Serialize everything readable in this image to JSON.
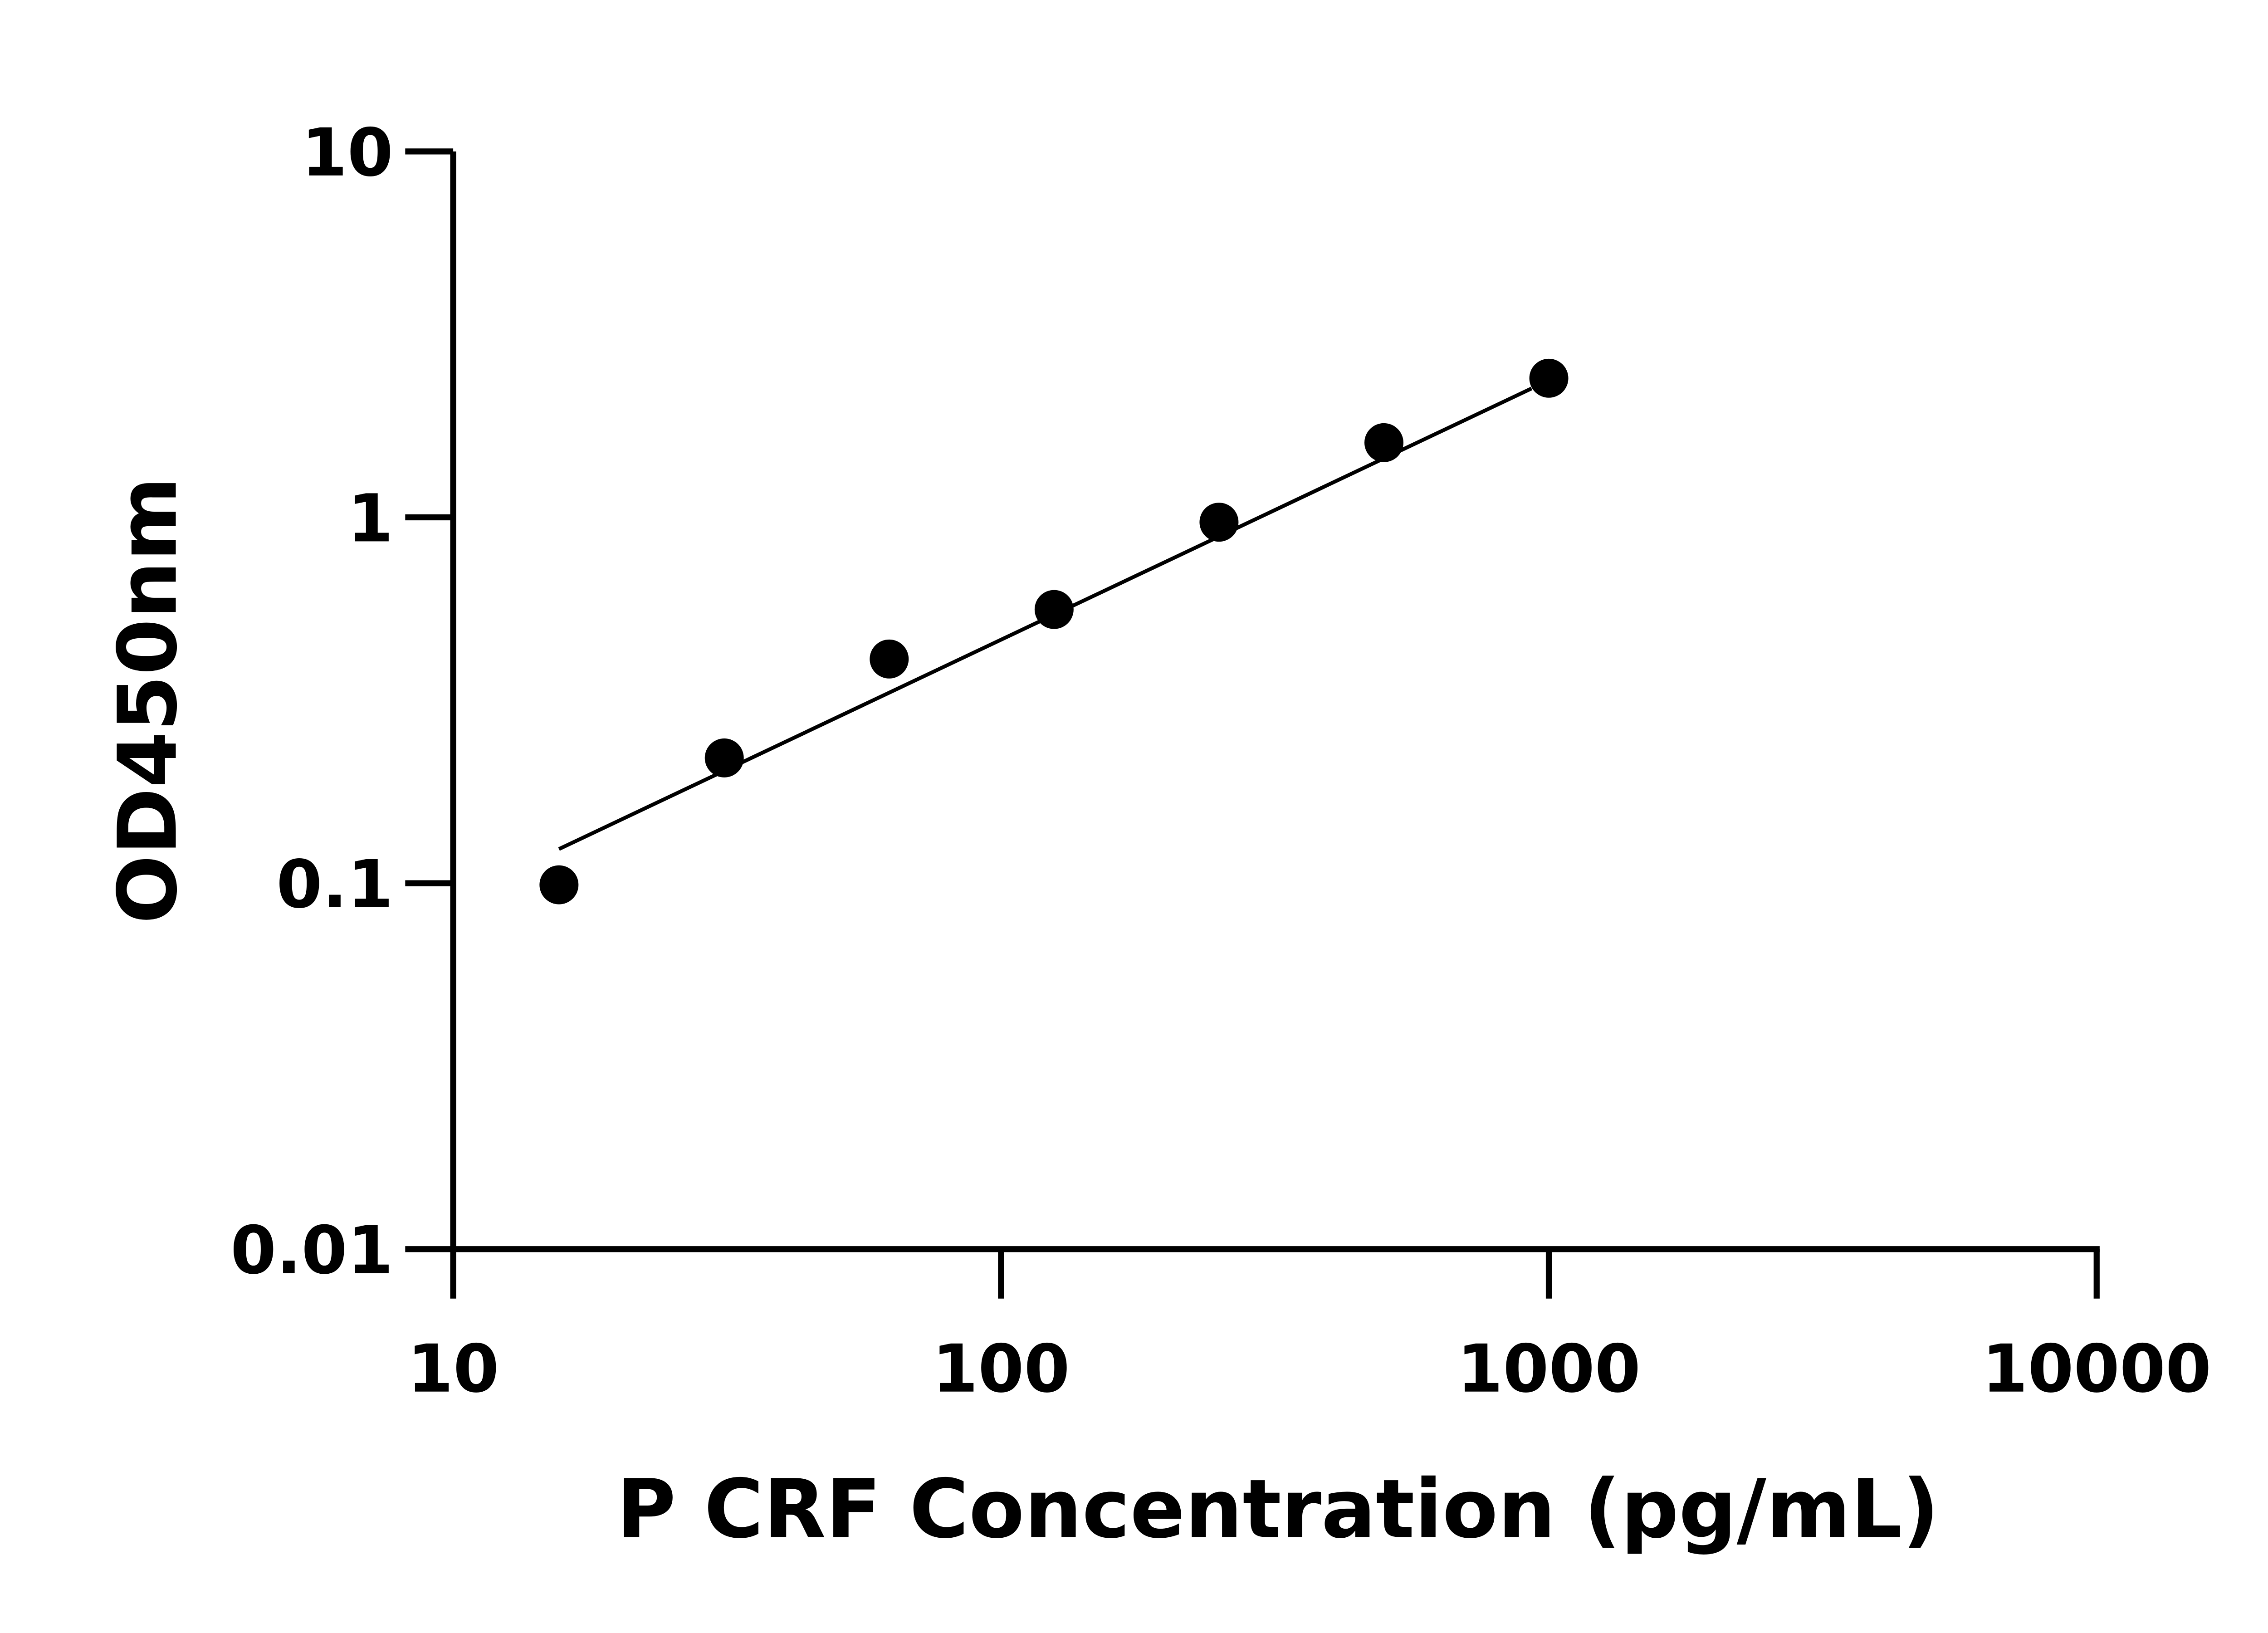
{
  "chart_data": {
    "type": "scatter",
    "title": "",
    "xlabel": "P CRF Concentration (pg/mL)",
    "ylabel": "OD450nm",
    "x_scale": "log",
    "y_scale": "log",
    "xlim": [
      10,
      10000
    ],
    "ylim": [
      0.01,
      10
    ],
    "x_ticks": [
      "10",
      "100",
      "1000",
      "10000"
    ],
    "y_ticks": [
      "0.01",
      "0.1",
      "1",
      "10"
    ],
    "grid": false,
    "series": [
      {
        "x": [
          15.6,
          31.25,
          62.5,
          125,
          250,
          500,
          1000
        ],
        "y": [
          0.099,
          0.22,
          0.41,
          0.56,
          0.97,
          1.6,
          2.4
        ]
      }
    ],
    "fit_line": {
      "x": [
        15.6,
        930
      ],
      "y": [
        0.124,
        2.25
      ]
    },
    "colors": {
      "points": "#000000",
      "line": "#000000",
      "axes": "#000000"
    }
  }
}
